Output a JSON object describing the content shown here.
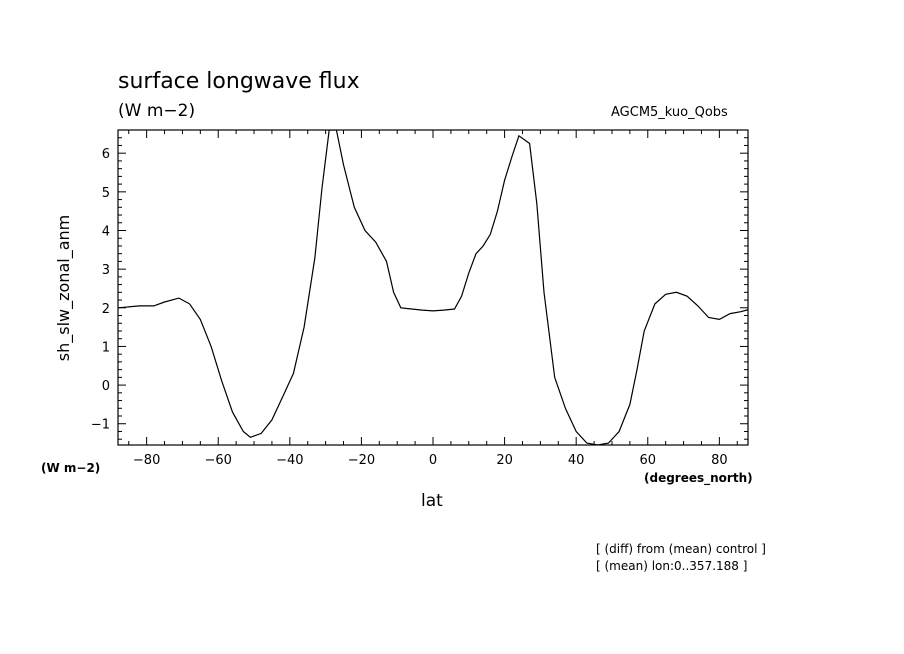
{
  "chart_data": {
    "type": "line",
    "title": "surface longwave flux",
    "units": "(W m−2)",
    "model": "AGCM5_kuo_Qobs",
    "xlabel": "lat",
    "ylabel": "sh_slw_zonal_anm",
    "x_units": "(degrees_north)",
    "y_units": "(W m−2)",
    "notes": [
      "[ (diff) from (mean) control ]",
      "[ (mean) lon:0..357.188 ]"
    ],
    "xlim": [
      -88,
      88
    ],
    "ylim": [
      -1.55,
      6.6
    ],
    "x_ticks": [
      -80,
      -60,
      -40,
      -20,
      0,
      20,
      40,
      60,
      80
    ],
    "y_ticks": [
      -1,
      0,
      1,
      2,
      3,
      4,
      5,
      6
    ],
    "x_tick_labels": [
      "−80",
      "−60",
      "−40",
      "−20",
      "0",
      "20",
      "40",
      "60",
      "80"
    ],
    "y_tick_labels": [
      "−1",
      "0",
      "1",
      "2",
      "3",
      "4",
      "5",
      "6"
    ],
    "grid": false,
    "series": [
      {
        "x": [
          -88,
          -82,
          -78,
          -75,
          -71,
          -68,
          -65,
          -62,
          -59,
          -56,
          -53,
          -51,
          -48,
          -45,
          -42,
          -39,
          -36,
          -33,
          -31,
          -29,
          -27,
          -25,
          -22,
          -19,
          -16,
          -13,
          -11,
          -9,
          -6,
          -3,
          0,
          3,
          6,
          8,
          10,
          12,
          14,
          16,
          18,
          20,
          22,
          24,
          27,
          29,
          31,
          34,
          37,
          40,
          43,
          46,
          49,
          52,
          55,
          57,
          59,
          62,
          65,
          68,
          71,
          74,
          77,
          80,
          83,
          86,
          88
        ],
        "y": [
          2.0,
          2.05,
          2.05,
          2.15,
          2.25,
          2.1,
          1.7,
          1.0,
          0.1,
          -0.7,
          -1.2,
          -1.35,
          -1.25,
          -0.9,
          -0.3,
          0.3,
          1.5,
          3.3,
          5.1,
          6.6,
          6.6,
          5.7,
          4.6,
          4.0,
          3.7,
          3.2,
          2.4,
          2.0,
          1.97,
          1.94,
          1.92,
          1.94,
          1.97,
          2.3,
          2.9,
          3.4,
          3.6,
          3.9,
          4.5,
          5.3,
          5.9,
          6.45,
          6.25,
          4.7,
          2.4,
          0.2,
          -0.6,
          -1.2,
          -1.5,
          -1.55,
          -1.5,
          -1.2,
          -0.5,
          0.4,
          1.4,
          2.1,
          2.35,
          2.4,
          2.3,
          2.05,
          1.75,
          1.7,
          1.85,
          1.9,
          1.95
        ]
      }
    ]
  }
}
